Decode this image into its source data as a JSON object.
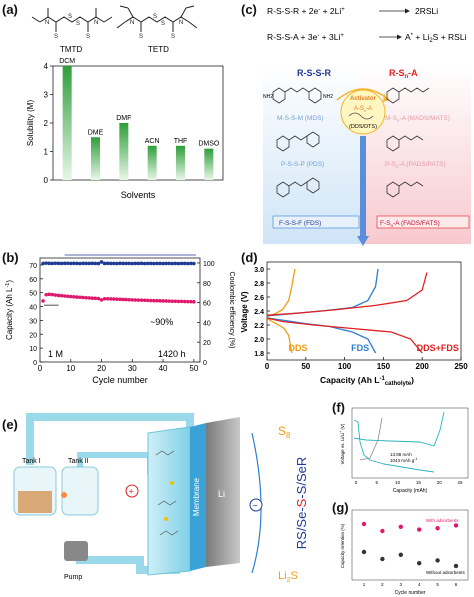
{
  "panel_labels": {
    "a": "(a)",
    "b": "(b)",
    "c": "(c)",
    "d": "(d)",
    "e": "(e)",
    "f": "(f)",
    "g": "(g)"
  },
  "molecules": {
    "left": "TMTD",
    "right": "TETD"
  },
  "colors": {
    "green_dark": "#2e9e3a",
    "green_light": "#d9f2d9",
    "navy": "#1f3a93",
    "pink": "#e0196e",
    "orange": "#f39c12",
    "blue": "#2d7fd3",
    "red": "#e02020",
    "teal": "#2bb3c0",
    "grey": "#8a8a8a"
  },
  "chart_data": [
    {
      "id": "a",
      "type": "bar",
      "categories": [
        "DCM",
        "DME",
        "DMF",
        "ACN",
        "THF",
        "DMSO"
      ],
      "values": [
        4.0,
        1.5,
        2.0,
        1.2,
        1.2,
        1.1
      ],
      "xlabel": "Solvents",
      "ylabel": "Solubility (M)",
      "ylim": [
        0,
        4
      ],
      "yticks": [
        "0",
        "1",
        "2",
        "3",
        "4"
      ]
    },
    {
      "id": "b",
      "type": "scatter",
      "xlabel": "Cycle number",
      "ylabel": "Capacity (Ah L",
      "ylabel_sup": "-1",
      "ylabel_end": ")",
      "y2label": "Coulombic efficiency (%)",
      "xlim": [
        0,
        52
      ],
      "ylim": [
        0,
        75
      ],
      "y2lim": [
        0,
        105
      ],
      "xticks": [
        "0",
        "10",
        "20",
        "30",
        "40",
        "50"
      ],
      "yticks": [
        "0",
        "10",
        "20",
        "30",
        "40",
        "50",
        "60",
        "70"
      ],
      "y2ticks": [
        "0",
        "20",
        "40",
        "60",
        "80",
        "100"
      ],
      "series": [
        {
          "axis": "right",
          "values": [
            99.5,
            99.8,
            99.6,
            99.5,
            99.7,
            99.6,
            99.5,
            99.6,
            99.7,
            99.5,
            99.6,
            99.5,
            99.4,
            99.6,
            99.5,
            99.5,
            99.6,
            99.5,
            99.4,
            101.0,
            99.5,
            99.6,
            99.5,
            99.5,
            99.4,
            99.6,
            99.5,
            99.5,
            99.5,
            99.4,
            99.5,
            99.5,
            99.6,
            99.4,
            99.5,
            99.5,
            99.4,
            99.5,
            99.5,
            99.4,
            99.5,
            99.5,
            99.4,
            99.5,
            99.4,
            99.5,
            99.5,
            99.4,
            99.5,
            99.4
          ]
        },
        {
          "axis": "left",
          "values": [
            44.0,
            48.5,
            48.8,
            48.6,
            48.3,
            48.0,
            47.8,
            47.6,
            47.4,
            47.2,
            47.0,
            46.8,
            46.7,
            46.5,
            46.3,
            46.2,
            46.0,
            45.9,
            45.7,
            44.8,
            45.6,
            45.6,
            45.5,
            45.4,
            45.3,
            45.2,
            45.1,
            45.0,
            44.9,
            44.8,
            44.7,
            44.6,
            44.6,
            44.5,
            44.4,
            44.3,
            44.2,
            44.2,
            44.1,
            44.0,
            44.0,
            43.9,
            43.8,
            43.8,
            43.7,
            43.7,
            43.6,
            43.5,
            43.5,
            43.4
          ]
        }
      ],
      "annotations": [
        "~90%",
        "1 M",
        "1420 h"
      ]
    },
    {
      "id": "d",
      "type": "line",
      "xlabel": "Capacity (Ah L",
      "xlabel_sup": "-1",
      "xlabel_sub": "catholyte",
      "xlabel_end": ")",
      "ylabel": "Voltage (V)",
      "xlim": [
        0,
        250
      ],
      "ylim": [
        1.7,
        3.1
      ],
      "xticks": [
        "0",
        "50",
        "100",
        "150",
        "200",
        "250"
      ],
      "yticks": [
        "1.8",
        "2.0",
        "2.2",
        "2.4",
        "2.6",
        "2.8",
        "3.0"
      ],
      "series": [
        {
          "name": "DDS",
          "discharge": [
            [
              0,
              2.3
            ],
            [
              5,
              2.26
            ],
            [
              10,
              2.23
            ],
            [
              15,
              2.2
            ],
            [
              22,
              2.15
            ],
            [
              28,
              2.05
            ],
            [
              32,
              1.8
            ]
          ],
          "charge": [
            [
              0,
              2.32
            ],
            [
              10,
              2.36
            ],
            [
              20,
              2.42
            ],
            [
              28,
              2.55
            ],
            [
              32,
              2.75
            ],
            [
              36,
              3.0
            ]
          ]
        },
        {
          "name": "FDS",
          "discharge": [
            [
              0,
              2.3
            ],
            [
              20,
              2.27
            ],
            [
              50,
              2.22
            ],
            [
              80,
              2.18
            ],
            [
              110,
              2.1
            ],
            [
              130,
              2.0
            ],
            [
              140,
              1.8
            ]
          ],
          "charge": [
            [
              0,
              2.33
            ],
            [
              30,
              2.36
            ],
            [
              70,
              2.4
            ],
            [
              110,
              2.45
            ],
            [
              130,
              2.55
            ],
            [
              140,
              2.75
            ],
            [
              143,
              3.0
            ]
          ]
        },
        {
          "name": "DDS+FDS",
          "discharge": [
            [
              0,
              2.3
            ],
            [
              20,
              2.25
            ],
            [
              60,
              2.2
            ],
            [
              110,
              2.15
            ],
            [
              160,
              2.1
            ],
            [
              185,
              2.0
            ],
            [
              200,
              1.8
            ]
          ],
          "charge": [
            [
              0,
              2.34
            ],
            [
              40,
              2.37
            ],
            [
              90,
              2.42
            ],
            [
              140,
              2.48
            ],
            [
              180,
              2.55
            ],
            [
              200,
              2.7
            ],
            [
              206,
              2.95
            ]
          ]
        }
      ]
    },
    {
      "id": "f",
      "type": "line",
      "xlabel": "Capacity (mAh)",
      "ylabel": "Voltage vs. Li/Li",
      "ylabel_sup": "+",
      "ylabel_end": " (V)",
      "xticks": [
        "0",
        "5",
        "10",
        "15",
        "20",
        "25"
      ],
      "annotations": [
        "13.88 mAh",
        "1043 mAh g",
        "-1"
      ]
    },
    {
      "id": "g",
      "type": "scatter",
      "xlabel": "Cycle number",
      "ylabel": "Capacity retention (%)",
      "xticks": [
        "1",
        "2",
        "3",
        "4",
        "5",
        "6"
      ],
      "series": [
        {
          "name": "With adsorbents",
          "values": [
            100,
            95,
            98,
            96,
            97,
            99
          ]
        },
        {
          "name": "Without adsorbents",
          "values": [
            80,
            75,
            78,
            72,
            74,
            70
          ]
        }
      ]
    }
  ],
  "reactions": {
    "r1_left": "R-S-S-R + 2e",
    "r1_sup1": "-",
    "r1_mid": " + 2Li",
    "r1_sup2": "+",
    "r1_right": "2RSLi",
    "r2_left": "R-S-S-A + 3e",
    "r2_sup1": "-",
    "r2_mid": " + 3Li",
    "r2_sup2": "+",
    "r2_right_a": "A",
    "r2_right_sup": "*",
    "r2_right_b": " + Li",
    "r2_right_sub": "2",
    "r2_right_c": "S + RSLi"
  },
  "panel_c": {
    "left_title": "R-S-S-R",
    "right_title": "R-S",
    "right_title_sub": "n",
    "right_title_end": "-A",
    "activator": "Activator",
    "activator_formula": "A-S",
    "activator_sub": "n",
    "activator_end": "-A",
    "activator_label": "(DDS/DTS)",
    "left_items": [
      "M-S-S-M (MDS)",
      "P-S-S-P (PDS)",
      "F-S-S-F (FDS)"
    ],
    "right_items": [
      "M-S",
      "P-S",
      "F-S"
    ],
    "right_items_sub": [
      "n",
      "n",
      "n"
    ],
    "right_items_end": [
      "-A (MADS/MATS)",
      "-A (PADS/PATS)",
      "-A (FADS/FATS)"
    ],
    "nh2": "NH2"
  },
  "panel_e": {
    "tank1": "Tank I",
    "tank2": "Tank II",
    "pump": "Pump",
    "membrane": "Membrane",
    "li": "Li",
    "plus": "+",
    "minus": "−",
    "s8": "S",
    "s8_sub": "8",
    "chain_a": "RS/Se-",
    "chain_b": "S",
    "chain_c": "-S/SeR",
    "li2s": "Li",
    "li2s_sub": "2",
    "li2s_end": "S"
  }
}
